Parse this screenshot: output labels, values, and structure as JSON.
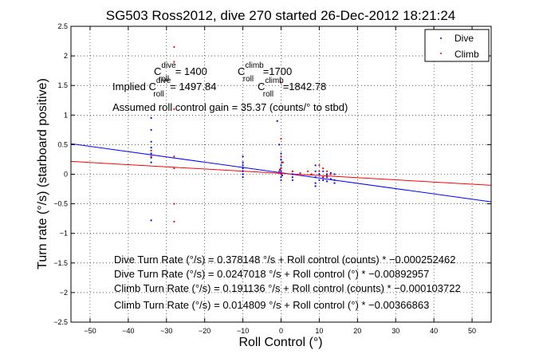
{
  "chart_data": {
    "type": "scatter",
    "title": "SG503 Ross2012, dive 270 started 26-Dec-2012 18:21:24",
    "xlabel": "Roll Control (°)",
    "ylabel": "Turn rate (°/s) (starboard positive)",
    "xlim": [
      -55,
      55
    ],
    "ylim": [
      -2.5,
      2.5
    ],
    "xticks": [
      "−50",
      "−40",
      "−30",
      "−20",
      "−10",
      "0",
      "10",
      "20",
      "30",
      "40",
      "50"
    ],
    "xtick_values": [
      -50,
      -40,
      -30,
      -20,
      -10,
      0,
      10,
      20,
      30,
      40,
      50
    ],
    "yticks": [
      "2.5",
      "2",
      "1.5",
      "1",
      "0.5",
      "0",
      "−0.5",
      "−1",
      "−1.5",
      "−2",
      "−2.5"
    ],
    "ytick_values": [
      2.5,
      2,
      1.5,
      1,
      0.5,
      0,
      -0.5,
      -1,
      -1.5,
      -2,
      -2.5
    ],
    "grid": true,
    "legend_position": "top-right",
    "series": [
      {
        "name": "Dive",
        "color": "#0000ff",
        "points": [
          [
            -34,
            0.55
          ],
          [
            -34,
            0.45
          ],
          [
            -34,
            0.35
          ],
          [
            -34,
            0.28
          ],
          [
            -34,
            0.2
          ],
          [
            -34,
            0.75
          ],
          [
            -34,
            0.95
          ],
          [
            -34,
            -0.78
          ],
          [
            -10,
            0.3
          ],
          [
            -10,
            0.2
          ],
          [
            -10,
            0.15
          ],
          [
            -10,
            0.05
          ],
          [
            -10,
            0.0
          ],
          [
            -10,
            -0.05
          ],
          [
            -10,
            0.1
          ],
          [
            -1,
            0.9
          ],
          [
            -0.5,
            0.5
          ],
          [
            0,
            0.35
          ],
          [
            0,
            0.25
          ],
          [
            0,
            0.15
          ],
          [
            0,
            0.1
          ],
          [
            0,
            0.05
          ],
          [
            0,
            0.0
          ],
          [
            0,
            -0.05
          ],
          [
            0,
            -0.1
          ],
          [
            0.2,
            0.2
          ],
          [
            0.3,
            -0.02
          ],
          [
            -0.3,
            0.08
          ],
          [
            3,
            0.05
          ],
          [
            3,
            0.0
          ],
          [
            3,
            -0.05
          ],
          [
            3,
            -0.1
          ],
          [
            9,
            0.15
          ],
          [
            9,
            0.05
          ],
          [
            9,
            -0.05
          ],
          [
            9,
            -0.15
          ],
          [
            9,
            -0.2
          ],
          [
            10,
            0.0
          ],
          [
            10,
            -0.1
          ],
          [
            11,
            0.05
          ],
          [
            11,
            -0.05
          ],
          [
            11,
            -0.1
          ],
          [
            12,
            0.0
          ],
          [
            12,
            -0.05
          ],
          [
            12,
            -0.12
          ],
          [
            13,
            0.02
          ],
          [
            13,
            -0.08
          ],
          [
            14,
            0.0
          ],
          [
            14,
            -0.1
          ],
          [
            14,
            -0.15
          ]
        ]
      },
      {
        "name": "Climb",
        "color": "#ff0000",
        "points": [
          [
            -28,
            2.15
          ],
          [
            -28,
            1.9
          ],
          [
            -28,
            1.1
          ],
          [
            -28,
            -0.5
          ],
          [
            -28,
            -0.8
          ],
          [
            -28,
            0.3
          ],
          [
            -28,
            0.1
          ],
          [
            -34,
            0.4
          ],
          [
            -34,
            0.3
          ],
          [
            0,
            1.55
          ],
          [
            0,
            0.6
          ],
          [
            0,
            0.3
          ],
          [
            0,
            0.1
          ],
          [
            0,
            0.0
          ],
          [
            0.5,
            0.2
          ],
          [
            -0.5,
            0.05
          ],
          [
            3,
            0.05
          ],
          [
            5,
            0.02
          ],
          [
            7,
            0.05
          ],
          [
            8,
            0.0
          ],
          [
            10,
            0.15
          ],
          [
            10,
            0.05
          ],
          [
            11,
            0.1
          ],
          [
            11,
            -0.05
          ],
          [
            12,
            0.05
          ],
          [
            12,
            -0.02
          ],
          [
            13,
            0.0
          ]
        ]
      }
    ],
    "fit_lines": [
      {
        "name": "Dive fit",
        "color": "#0000ff",
        "intercept": 0.0247018,
        "slope": -0.00892957
      },
      {
        "name": "Climb fit",
        "color": "#ff0000",
        "intercept": 0.014809,
        "slope": -0.00366863
      }
    ],
    "annotations": {
      "c_roll_dive": "C",
      "c_roll_dive_sup": "dive",
      "c_roll_dive_sub": "roll",
      "c_roll_dive_val": " = 1400",
      "c_roll_climb": "C",
      "c_roll_climb_sup": "climb",
      "c_roll_climb_sub": "roll",
      "c_roll_climb_val": " =1700",
      "implied_prefix": "Implied C",
      "implied_dive_sup": "dive",
      "implied_dive_sub": "roll",
      "implied_dive_val": " = 1497.84",
      "implied_climb": "C",
      "implied_climb_sup": "climb",
      "implied_climb_sub": "roll",
      "implied_climb_val": " =1842.78",
      "gain": "Assumed roll control gain = 35.37 (counts/° to stbd)",
      "eq1": "Dive Turn Rate (°/s) = 0.378148 °/s + Roll control (counts) * −0.000252462",
      "eq2": "Dive Turn Rate (°/s) = 0.0247018 °/s + Roll control (°) * −0.00892957",
      "eq3": "Climb Turn Rate (°/s) = 0.191136 °/s + Roll control (counts) * −0.000103722",
      "eq4": "Climb Turn Rate (°/s) = 0.014809 °/s + Roll control (°) * −0.00366863"
    }
  }
}
